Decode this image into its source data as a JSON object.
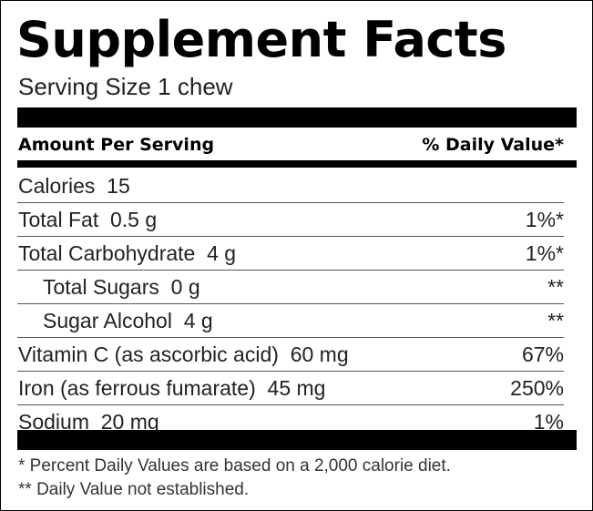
{
  "title": "Supplement Facts",
  "serving_size": "Serving Size 1 chew",
  "header": {
    "amount_label": "Amount Per Serving",
    "daily_value_label": "% Daily Value*"
  },
  "nutrients": [
    {
      "name": "Calories",
      "amount": "15",
      "dv": "",
      "indent": false
    },
    {
      "name": "Total Fat",
      "amount": "0.5 g",
      "dv": "1%*",
      "indent": false
    },
    {
      "name": "Total Carbohydrate",
      "amount": "4 g",
      "dv": "1%*",
      "indent": false
    },
    {
      "name": "Total Sugars",
      "amount": "0 g",
      "dv": "**",
      "indent": true
    },
    {
      "name": "Sugar Alcohol",
      "amount": "4 g",
      "dv": "**",
      "indent": true
    },
    {
      "name": "Vitamin C (as ascorbic acid)",
      "amount": "60 mg",
      "dv": "67%",
      "indent": false
    },
    {
      "name": "Iron (as ferrous fumarate)",
      "amount": "45 mg",
      "dv": "250%",
      "indent": false
    },
    {
      "name": "Sodium",
      "amount": "20 mg",
      "dv": "1%",
      "indent": false
    }
  ],
  "footnotes": [
    "* Percent Daily Values are based on a 2,000 calorie diet.",
    "** Daily Value not established."
  ]
}
